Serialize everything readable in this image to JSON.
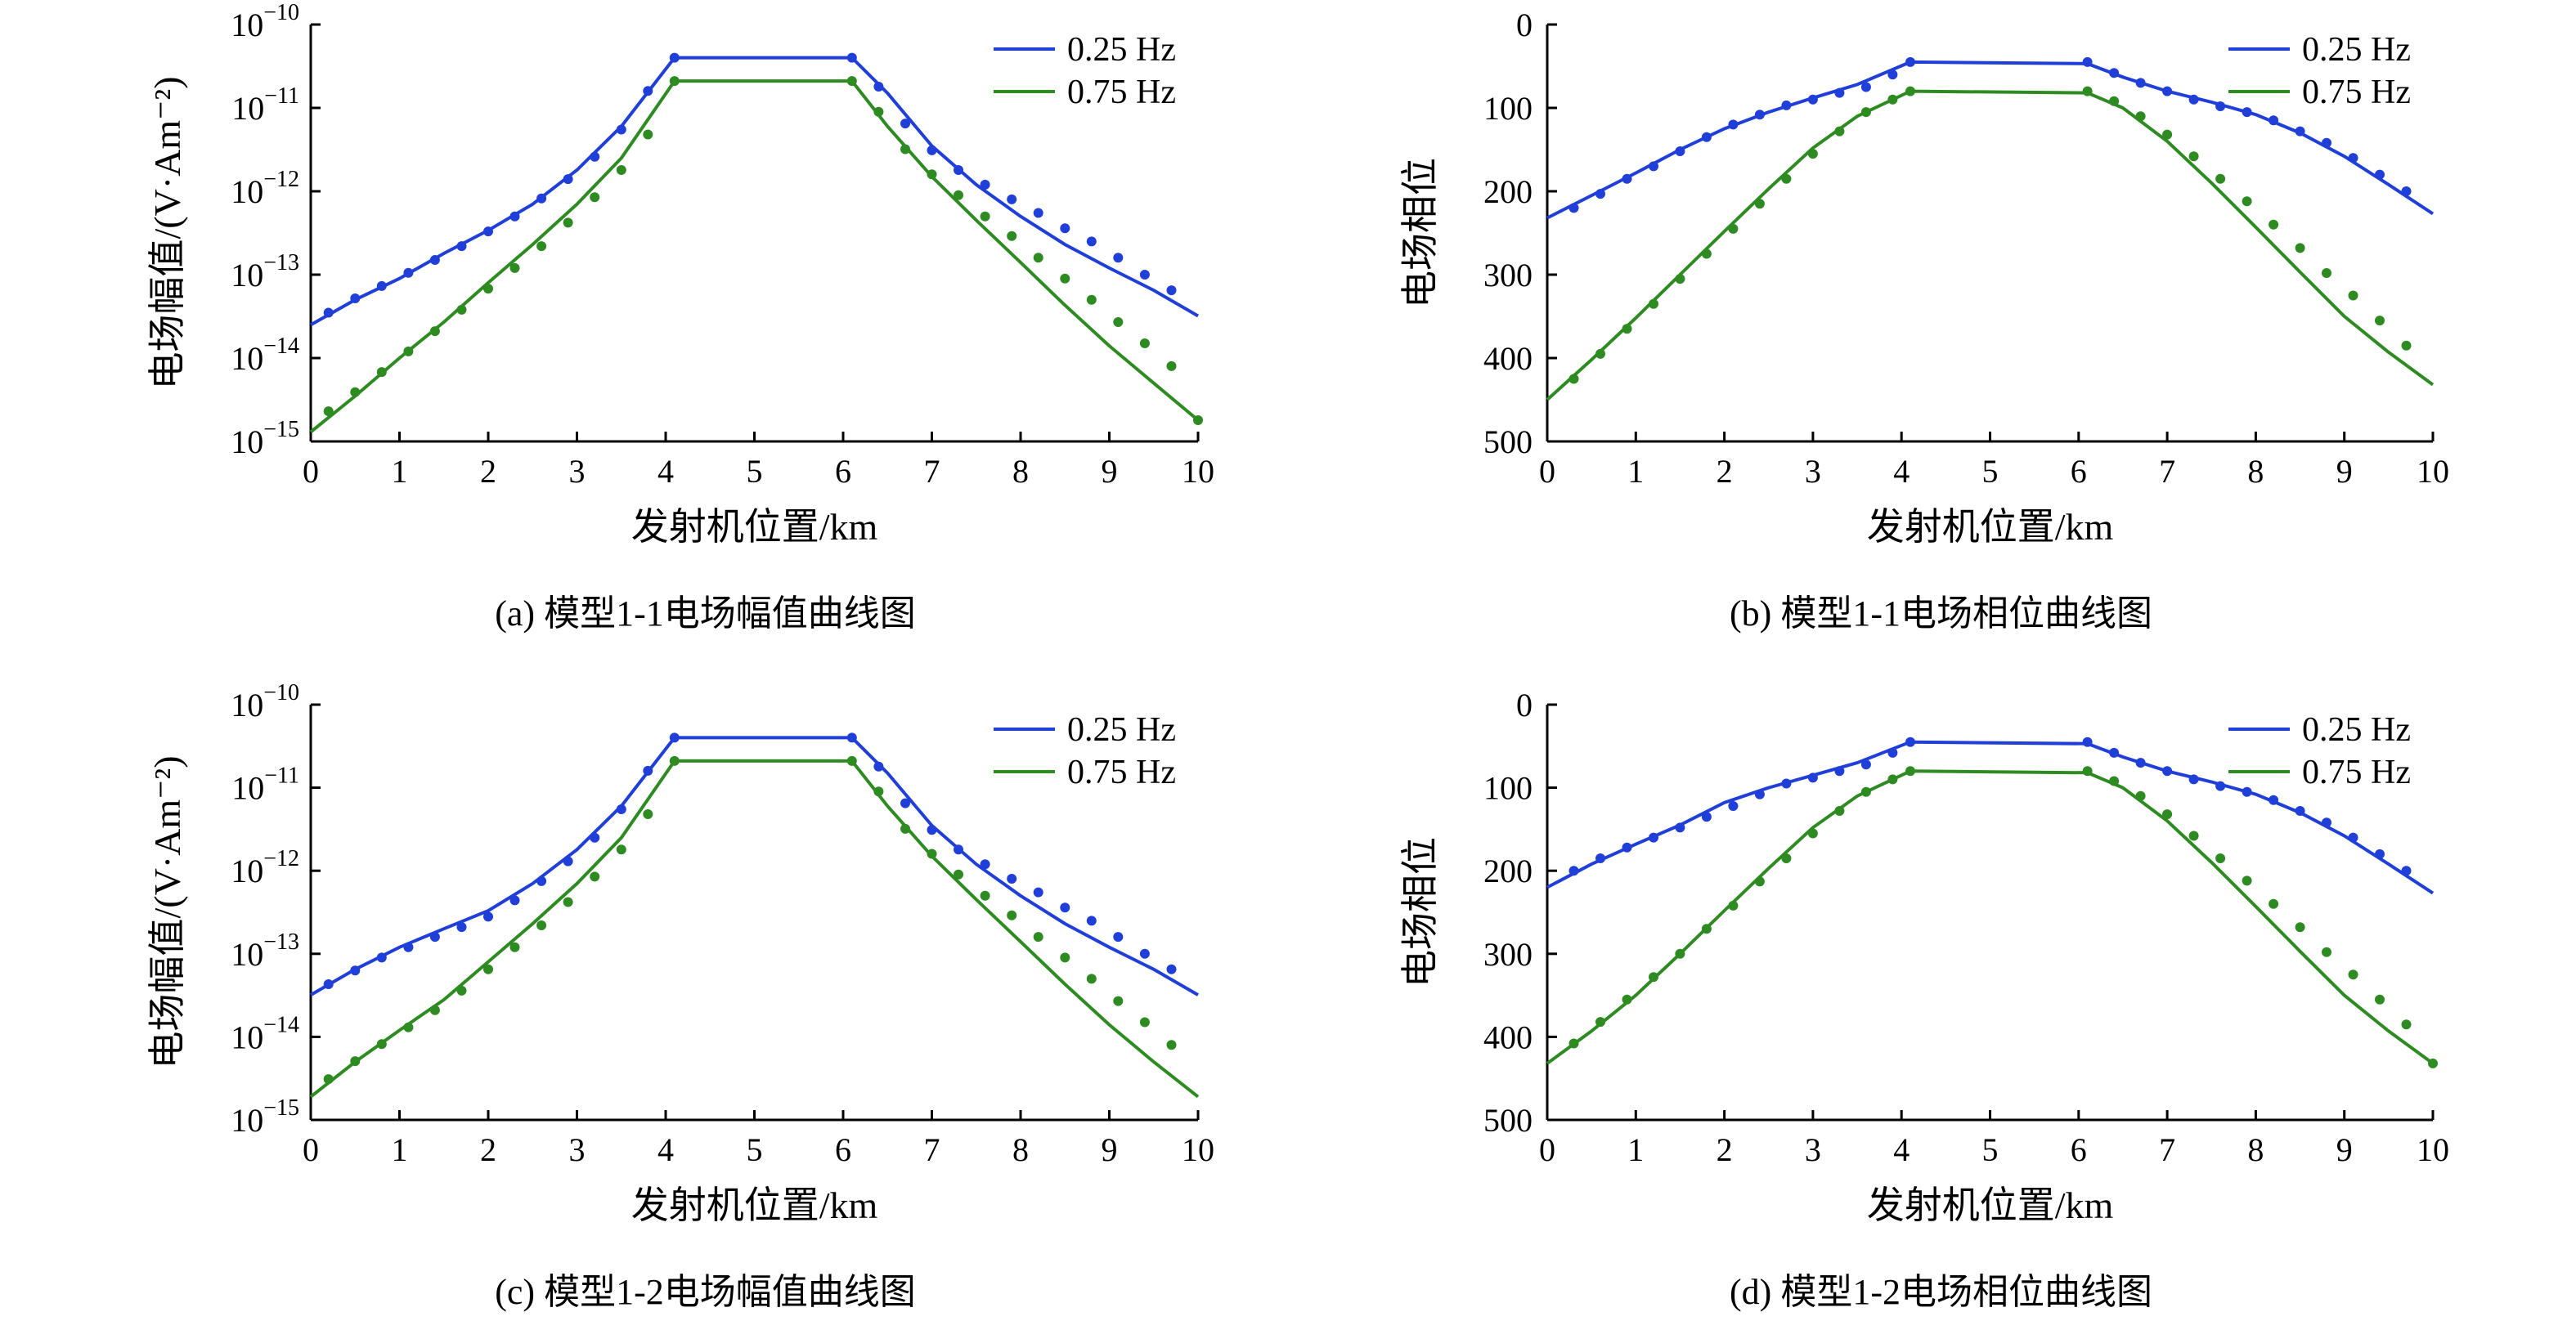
{
  "chart_data": [
    {
      "type": "line",
      "id": "a",
      "caption": "(a) 模型1-1电场幅值曲线图",
      "xlabel": "发射机位置/km",
      "ylabel": "电场幅值/(V·Am⁻²)",
      "y_scale": "log",
      "xlim": [
        0,
        10
      ],
      "ylim": [
        1e-15,
        1e-10
      ],
      "x_ticks": [
        "0",
        "1",
        "2",
        "3",
        "4",
        "5",
        "6",
        "7",
        "8",
        "9",
        "10"
      ],
      "y_ticks": [
        {
          "base": "10",
          "exp": "−15"
        },
        {
          "base": "10",
          "exp": "−14"
        },
        {
          "base": "10",
          "exp": "−13"
        },
        {
          "base": "10",
          "exp": "−12"
        },
        {
          "base": "10",
          "exp": "−11"
        },
        {
          "base": "10",
          "exp": "−10"
        }
      ],
      "legend": "top-right",
      "series": [
        {
          "name": "0.25 Hz",
          "color": "#1f3fd8",
          "line": {
            "x": [
              0,
              0.5,
              1,
              1.5,
              2,
              2.5,
              3,
              3.5,
              4.1,
              6.1,
              6.5,
              7,
              7.5,
              8,
              8.5,
              9,
              9.5,
              10
            ],
            "y": [
              2.5e-14,
              5e-14,
              9e-14,
              1.8e-13,
              3.4e-13,
              7e-13,
              1.8e-12,
              6e-12,
              4e-11,
              4e-11,
              1.5e-11,
              3.5e-12,
              1.2e-12,
              5e-13,
              2.3e-13,
              1.2e-13,
              6.5e-14,
              3.2e-14
            ]
          },
          "points": {
            "x": [
              0.2,
              0.5,
              0.8,
              1.1,
              1.4,
              1.7,
              2.0,
              2.3,
              2.6,
              2.9,
              3.2,
              3.5,
              3.8,
              4.1,
              6.1,
              6.4,
              6.7,
              7.0,
              7.3,
              7.6,
              7.9,
              8.2,
              8.5,
              8.8,
              9.1,
              9.4,
              9.7
            ],
            "y": [
              3.5e-14,
              5.2e-14,
              7.3e-14,
              1.05e-13,
              1.5e-13,
              2.2e-13,
              3.3e-13,
              5e-13,
              8.2e-13,
              1.4e-12,
              2.6e-12,
              5.5e-12,
              1.6e-11,
              4e-11,
              4e-11,
              1.8e-11,
              6.5e-12,
              3.1e-12,
              1.8e-12,
              1.2e-12,
              8e-13,
              5.5e-13,
              3.6e-13,
              2.5e-13,
              1.6e-13,
              1e-13,
              6.5e-14
            ]
          }
        },
        {
          "name": "0.75 Hz",
          "color": "#2e8b22",
          "line": {
            "x": [
              0,
              0.5,
              1,
              1.5,
              2,
              2.5,
              3,
              3.5,
              4.1,
              6.1,
              6.5,
              7,
              7.5,
              8,
              8.5,
              9,
              9.5,
              10
            ],
            "y": [
              1.3e-15,
              3.5e-15,
              1e-14,
              2.7e-14,
              8e-14,
              2.3e-13,
              7e-13,
              2.5e-12,
              2.1e-11,
              2.1e-11,
              6e-12,
              1.5e-12,
              4.5e-13,
              1.4e-13,
              4.3e-14,
              1.4e-14,
              5e-15,
              1.8e-15
            ]
          },
          "points": {
            "x": [
              0.2,
              0.5,
              0.8,
              1.1,
              1.4,
              1.7,
              2.0,
              2.3,
              2.6,
              2.9,
              3.2,
              3.5,
              3.8,
              4.1,
              6.1,
              6.4,
              6.7,
              7.0,
              7.3,
              7.6,
              7.9,
              8.2,
              8.5,
              8.8,
              9.1,
              9.4,
              9.7,
              10.0
            ],
            "y": [
              2.3e-15,
              3.9e-15,
              6.8e-15,
              1.2e-14,
              2.1e-14,
              3.8e-14,
              6.8e-14,
              1.2e-13,
              2.2e-13,
              4.2e-13,
              8.5e-13,
              1.8e-12,
              4.8e-12,
              2.1e-11,
              2.1e-11,
              9e-12,
              3.2e-12,
              1.6e-12,
              9e-13,
              5e-13,
              2.9e-13,
              1.6e-13,
              9e-14,
              5e-14,
              2.7e-14,
              1.5e-14,
              8e-15,
              1.8e-15
            ]
          }
        }
      ]
    },
    {
      "type": "line",
      "id": "b",
      "caption": "(b) 模型1-1电场相位曲线图",
      "xlabel": "发射机位置/km",
      "ylabel": "电场相位",
      "y_scale": "linear",
      "y_inverted": true,
      "xlim": [
        0,
        10
      ],
      "ylim": [
        0,
        500
      ],
      "x_ticks": [
        "0",
        "1",
        "2",
        "3",
        "4",
        "5",
        "6",
        "7",
        "8",
        "9",
        "10"
      ],
      "y_ticks": [
        "0",
        "100",
        "200",
        "300",
        "400",
        "500"
      ],
      "legend": "top-right",
      "series": [
        {
          "name": "0.25 Hz",
          "color": "#1f3fd8",
          "line": {
            "x": [
              0,
              0.5,
              1,
              1.5,
              2,
              2.5,
              3,
              3.5,
              4.1,
              6.1,
              6.5,
              7,
              7.5,
              8,
              8.5,
              9,
              9.5,
              10
            ],
            "y": [
              232,
              205,
              178,
              150,
              125,
              105,
              88,
              72,
              45,
              47,
              63,
              80,
              93,
              108,
              130,
              158,
              192,
              227
            ]
          },
          "points": {
            "x": [
              0.3,
              0.6,
              0.9,
              1.2,
              1.5,
              1.8,
              2.1,
              2.4,
              2.7,
              3.0,
              3.3,
              3.6,
              3.9,
              4.1,
              6.1,
              6.4,
              6.7,
              7.0,
              7.3,
              7.6,
              7.9,
              8.2,
              8.5,
              8.8,
              9.1,
              9.4,
              9.7
            ],
            "y": [
              220,
              203,
              185,
              170,
              152,
              135,
              120,
              108,
              97,
              90,
              82,
              75,
              60,
              45,
              45,
              58,
              70,
              80,
              90,
              98,
              105,
              115,
              128,
              142,
              160,
              180,
              200
            ]
          }
        },
        {
          "name": "0.75 Hz",
          "color": "#2e8b22",
          "line": {
            "x": [
              0,
              0.5,
              1,
              1.5,
              2,
              2.5,
              3,
              3.5,
              4.1,
              6.1,
              6.5,
              7,
              7.5,
              8,
              8.5,
              9,
              9.5,
              10
            ],
            "y": [
              450,
              402,
              352,
              300,
              248,
              197,
              148,
              110,
              80,
              82,
              100,
              140,
              190,
              243,
              297,
              350,
              393,
              432
            ]
          },
          "points": {
            "x": [
              0.3,
              0.6,
              0.9,
              1.2,
              1.5,
              1.8,
              2.1,
              2.4,
              2.7,
              3.0,
              3.3,
              3.6,
              3.9,
              4.1,
              6.1,
              6.4,
              6.7,
              7.0,
              7.3,
              7.6,
              7.9,
              8.2,
              8.5,
              8.8,
              9.1,
              9.4,
              9.7
            ],
            "y": [
              425,
              395,
              365,
              335,
              305,
              275,
              245,
              215,
              185,
              155,
              128,
              105,
              90,
              80,
              80,
              92,
              110,
              132,
              158,
              185,
              212,
              240,
              268,
              298,
              325,
              355,
              385
            ]
          }
        }
      ]
    },
    {
      "type": "line",
      "id": "c",
      "caption": "(c) 模型1-2电场幅值曲线图",
      "xlabel": "发射机位置/km",
      "ylabel": "电场幅值/(V·Am⁻²)",
      "y_scale": "log",
      "xlim": [
        0,
        10
      ],
      "ylim": [
        1e-15,
        1e-10
      ],
      "x_ticks": [
        "0",
        "1",
        "2",
        "3",
        "4",
        "5",
        "6",
        "7",
        "8",
        "9",
        "10"
      ],
      "y_ticks": [
        {
          "base": "10",
          "exp": "−15"
        },
        {
          "base": "10",
          "exp": "−14"
        },
        {
          "base": "10",
          "exp": "−13"
        },
        {
          "base": "10",
          "exp": "−12"
        },
        {
          "base": "10",
          "exp": "−11"
        },
        {
          "base": "10",
          "exp": "−10"
        }
      ],
      "legend": "top-right",
      "series": [
        {
          "name": "0.25 Hz",
          "color": "#1f3fd8",
          "line": {
            "x": [
              0,
              0.5,
              1,
              1.5,
              2,
              2.5,
              3,
              3.5,
              4.1,
              6.1,
              6.5,
              7,
              7.5,
              8,
              8.5,
              9,
              9.5,
              10
            ],
            "y": [
              3.2e-14,
              6.5e-14,
              1.2e-13,
              2e-13,
              3.3e-13,
              7e-13,
              1.8e-12,
              6e-12,
              4e-11,
              4e-11,
              1.5e-11,
              3.5e-12,
              1.2e-12,
              5e-13,
              2.3e-13,
              1.2e-13,
              6.5e-14,
              3.2e-14
            ]
          },
          "points": {
            "x": [
              0.2,
              0.5,
              0.8,
              1.1,
              1.4,
              1.7,
              2.0,
              2.3,
              2.6,
              2.9,
              3.2,
              3.5,
              3.8,
              4.1,
              6.1,
              6.4,
              6.7,
              7.0,
              7.3,
              7.6,
              7.9,
              8.2,
              8.5,
              8.8,
              9.1,
              9.4,
              9.7
            ],
            "y": [
              4.3e-14,
              6.3e-14,
              9e-14,
              1.2e-13,
              1.6e-13,
              2.1e-13,
              2.8e-13,
              4.4e-13,
              7.5e-13,
              1.3e-12,
              2.5e-12,
              5.5e-12,
              1.6e-11,
              4e-11,
              4e-11,
              1.8e-11,
              6.5e-12,
              3.1e-12,
              1.8e-12,
              1.2e-12,
              8e-13,
              5.5e-13,
              3.6e-13,
              2.5e-13,
              1.6e-13,
              1e-13,
              6.5e-14
            ]
          }
        },
        {
          "name": "0.75 Hz",
          "color": "#2e8b22",
          "line": {
            "x": [
              0,
              0.5,
              1,
              1.5,
              2,
              2.5,
              3,
              3.5,
              4.1,
              6.1,
              6.5,
              7,
              7.5,
              8,
              8.5,
              9,
              9.5,
              10
            ],
            "y": [
              1.9e-15,
              5e-15,
              1.2e-14,
              2.8e-14,
              8e-14,
              2.3e-13,
              7e-13,
              2.5e-12,
              2.1e-11,
              2.1e-11,
              6e-12,
              1.5e-12,
              4.5e-13,
              1.4e-13,
              4.3e-14,
              1.4e-14,
              5e-15,
              1.9e-15
            ]
          },
          "points": {
            "x": [
              0.2,
              0.5,
              0.8,
              1.1,
              1.4,
              1.7,
              2.0,
              2.3,
              2.6,
              2.9,
              3.2,
              3.5,
              3.8,
              4.1,
              6.1,
              6.4,
              6.7,
              7.0,
              7.3,
              7.6,
              7.9,
              8.2,
              8.5,
              8.8,
              9.1,
              9.4,
              9.7
            ],
            "y": [
              3.1e-15,
              5.1e-15,
              8.2e-15,
              1.3e-14,
              2.1e-14,
              3.6e-14,
              6.5e-14,
              1.2e-13,
              2.2e-13,
              4.2e-13,
              8.5e-13,
              1.8e-12,
              4.8e-12,
              2.1e-11,
              2.1e-11,
              9e-12,
              3.2e-12,
              1.6e-12,
              9e-13,
              5e-13,
              2.9e-13,
              1.6e-13,
              9e-14,
              5e-14,
              2.7e-14,
              1.5e-14,
              8e-15
            ]
          }
        }
      ]
    },
    {
      "type": "line",
      "id": "d",
      "caption": "(d) 模型1-2电场相位曲线图",
      "xlabel": "发射机位置/km",
      "ylabel": "电场相位",
      "y_scale": "linear",
      "y_inverted": true,
      "xlim": [
        0,
        10
      ],
      "ylim": [
        0,
        500
      ],
      "x_ticks": [
        "0",
        "1",
        "2",
        "3",
        "4",
        "5",
        "6",
        "7",
        "8",
        "9",
        "10"
      ],
      "y_ticks": [
        "0",
        "100",
        "200",
        "300",
        "400",
        "500"
      ],
      "legend": "top-right",
      "series": [
        {
          "name": "0.25 Hz",
          "color": "#1f3fd8",
          "line": {
            "x": [
              0,
              0.5,
              1,
              1.5,
              2,
              2.5,
              3,
              3.5,
              4.1,
              6.1,
              6.5,
              7,
              7.5,
              8,
              8.5,
              9,
              9.5,
              10
            ],
            "y": [
              220,
              192,
              168,
              145,
              118,
              100,
              85,
              70,
              45,
              47,
              63,
              80,
              93,
              108,
              130,
              158,
              192,
              227
            ]
          },
          "points": {
            "x": [
              0.3,
              0.6,
              0.9,
              1.2,
              1.5,
              1.8,
              2.1,
              2.4,
              2.7,
              3.0,
              3.3,
              3.6,
              3.9,
              4.1,
              6.1,
              6.4,
              6.7,
              7.0,
              7.3,
              7.6,
              7.9,
              8.2,
              8.5,
              8.8,
              9.1,
              9.4,
              9.7
            ],
            "y": [
              200,
              185,
              172,
              160,
              148,
              135,
              122,
              108,
              95,
              88,
              80,
              72,
              58,
              45,
              45,
              58,
              70,
              80,
              90,
              98,
              105,
              115,
              128,
              142,
              160,
              180,
              200
            ]
          }
        },
        {
          "name": "0.75 Hz",
          "color": "#2e8b22",
          "line": {
            "x": [
              0,
              0.5,
              1,
              1.5,
              2,
              2.5,
              3,
              3.5,
              4.1,
              6.1,
              6.5,
              7,
              7.5,
              8,
              8.5,
              9,
              9.5,
              10
            ],
            "y": [
              432,
              393,
              350,
              300,
              248,
              197,
              148,
              110,
              80,
              82,
              100,
              140,
              190,
              243,
              297,
              350,
              393,
              432
            ]
          },
          "points": {
            "x": [
              0.3,
              0.6,
              0.9,
              1.2,
              1.5,
              1.8,
              2.1,
              2.4,
              2.7,
              3.0,
              3.3,
              3.6,
              3.9,
              4.1,
              6.1,
              6.4,
              6.7,
              7.0,
              7.3,
              7.6,
              7.9,
              8.2,
              8.5,
              8.8,
              9.1,
              9.4,
              9.7,
              10.0
            ],
            "y": [
              408,
              382,
              355,
              328,
              300,
              270,
              242,
              213,
              185,
              155,
              128,
              105,
              90,
              80,
              80,
              92,
              110,
              132,
              158,
              185,
              212,
              240,
              268,
              298,
              325,
              355,
              385,
              432
            ]
          }
        }
      ]
    }
  ]
}
